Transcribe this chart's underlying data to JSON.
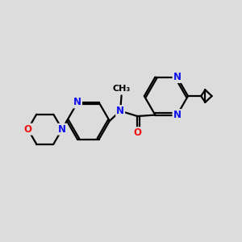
{
  "bg_color": "#dcdcdc",
  "bond_color": "#000000",
  "bond_width": 1.6,
  "atom_colors": {
    "N": "#1010ee",
    "O": "#ee1010",
    "C": "#000000"
  },
  "font_size": 8.5,
  "figsize": [
    3.0,
    3.0
  ],
  "dpi": 100
}
